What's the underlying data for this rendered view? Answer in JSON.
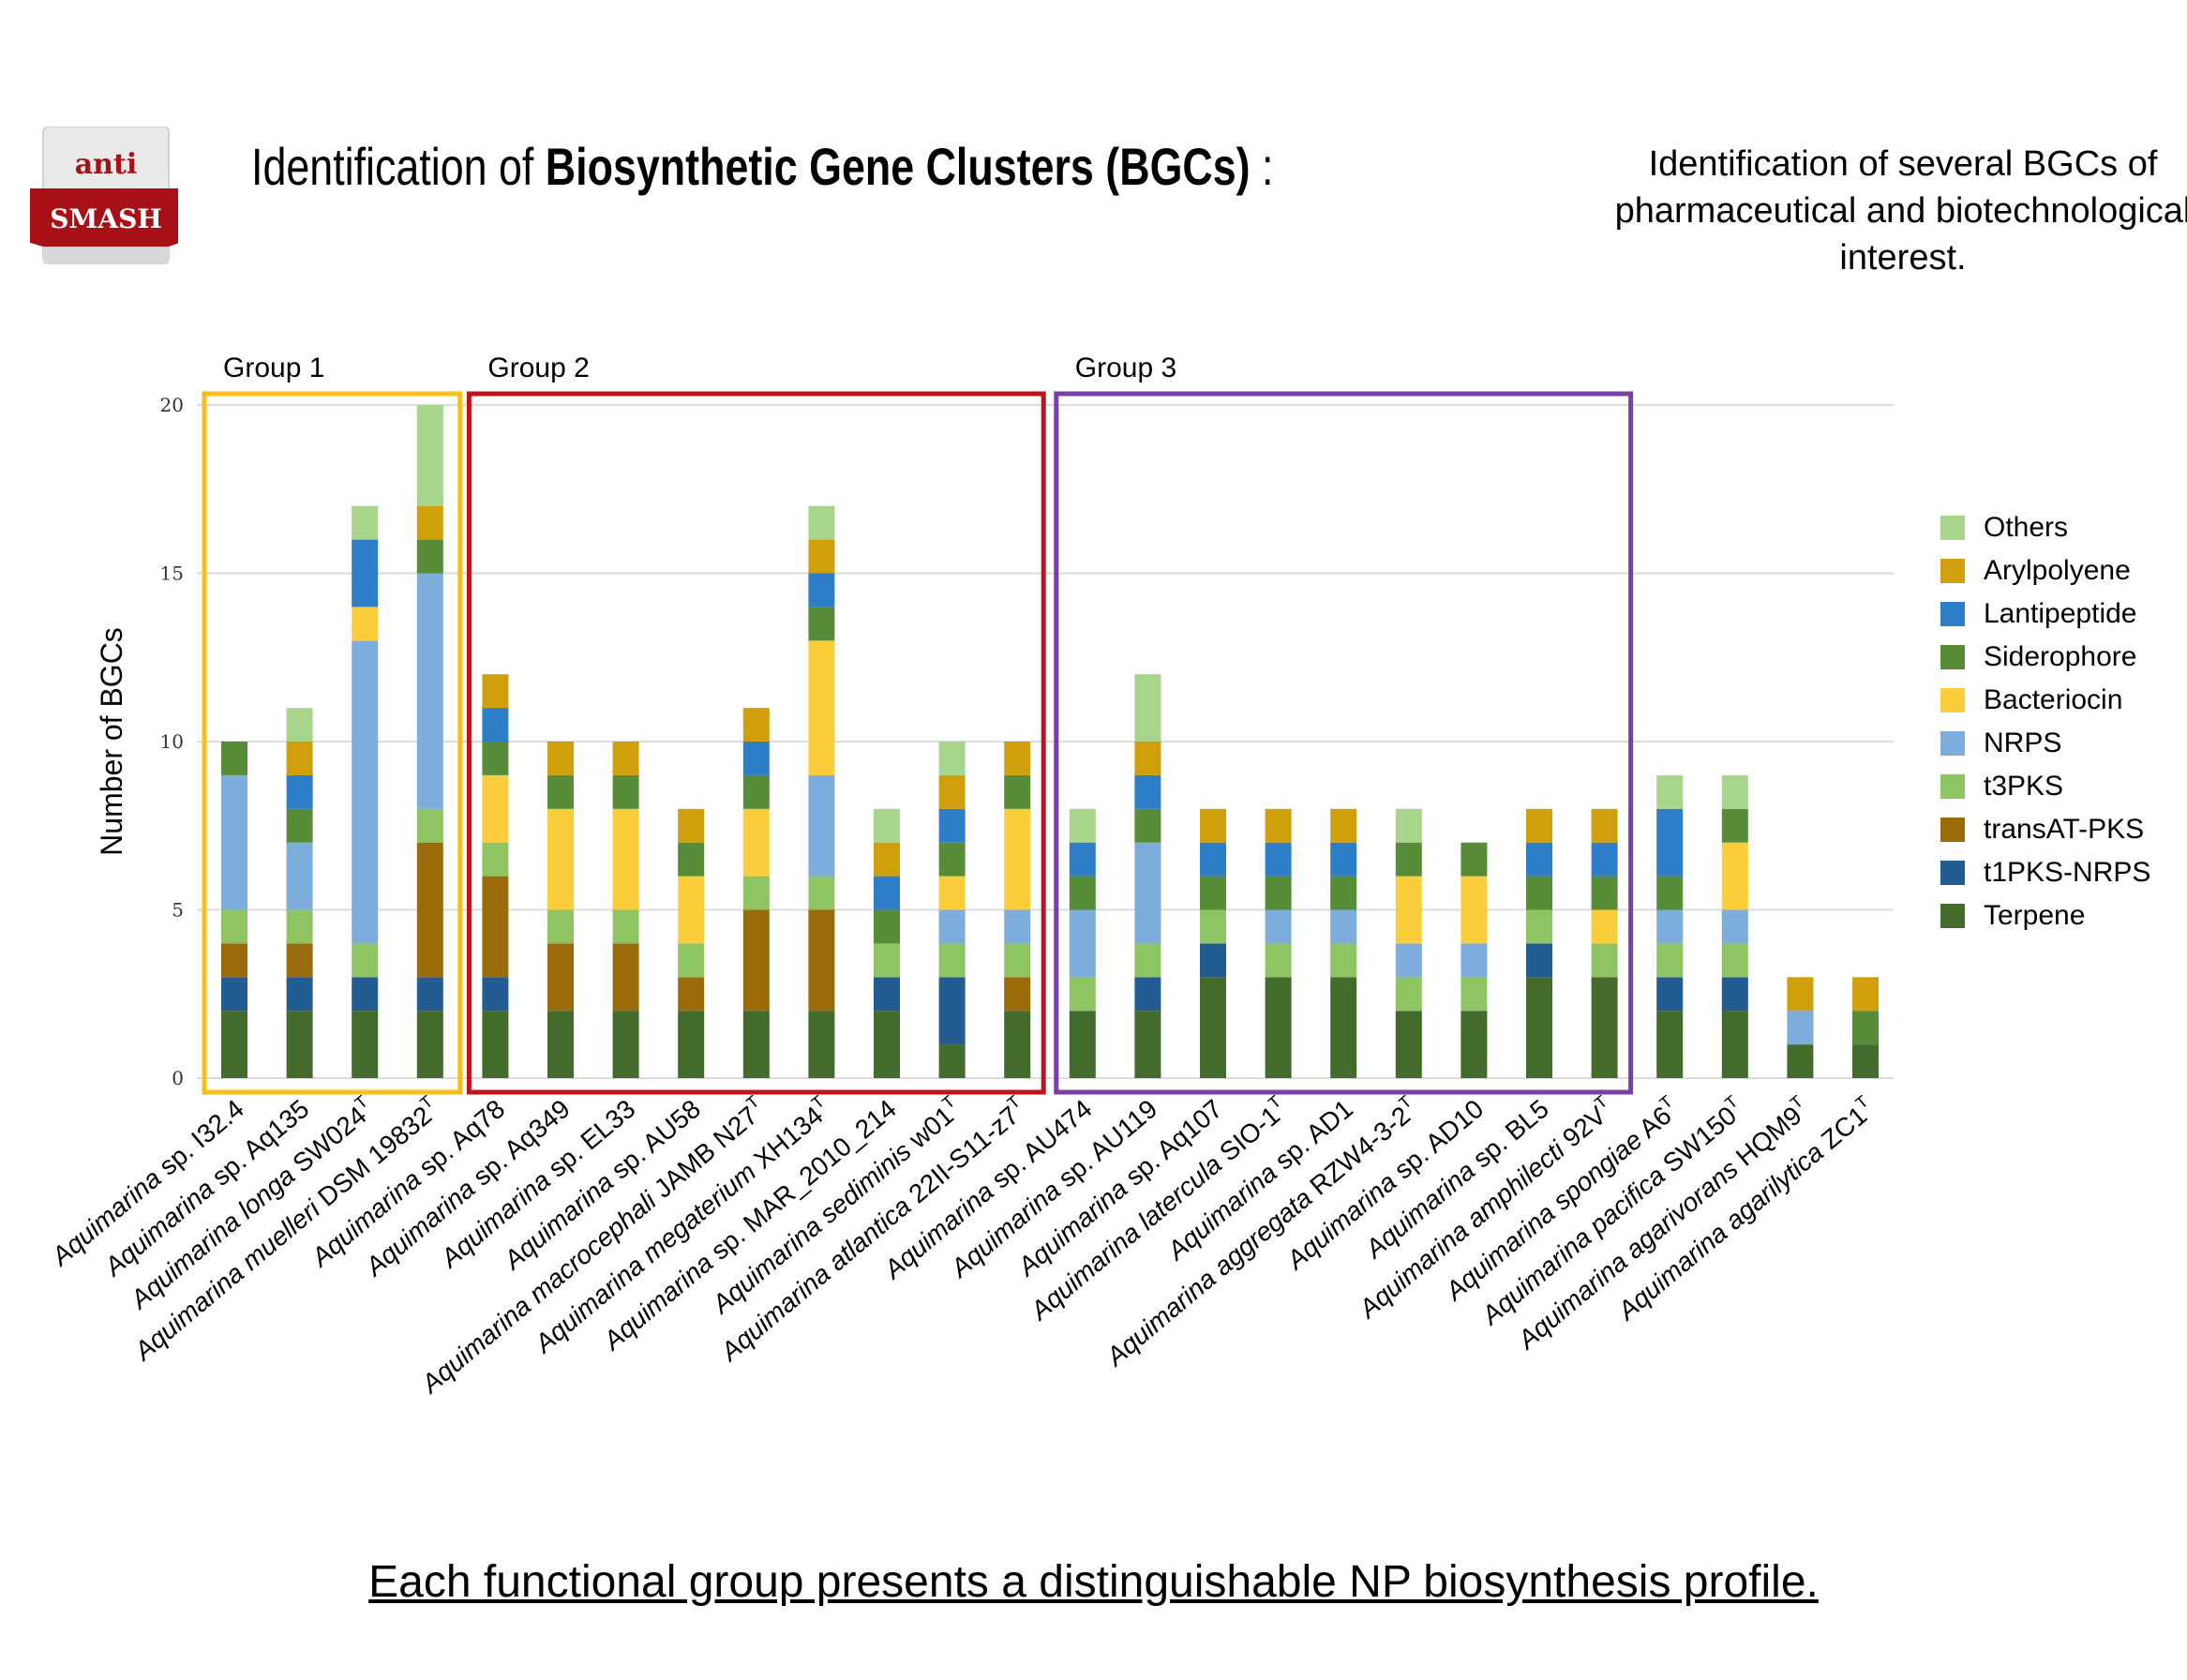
{
  "header": {
    "logo_top": "anti",
    "logo_bottom": "SMASH",
    "title_plain": "Identification of ",
    "title_bold": "Biosynthetic Gene Clusters (BGCs)",
    "title_suffix": " :",
    "note": "Identification of several BGCs of pharmaceutical and biotechnological interest."
  },
  "footer": {
    "text": "Each functional group presents a distinguishable NP biosynthesis profile."
  },
  "colors": {
    "group1": "#f6bf1a",
    "group2": "#c0111c",
    "group3": "#7a3fa3",
    "logo_red": "#a81016"
  },
  "chart_data": {
    "type": "bar",
    "stacked": true,
    "ylabel": "Number of BGCs",
    "xlabel": "",
    "ylim": [
      0,
      20
    ],
    "yticks": [
      0,
      5,
      10,
      15,
      20
    ],
    "grid": true,
    "legend_position": "right",
    "groups": [
      {
        "label": "Group 1",
        "start": 0,
        "end": 3,
        "color": "#f6bf1a"
      },
      {
        "label": "Group 2",
        "start": 4,
        "end": 12,
        "color": "#c0111c"
      },
      {
        "label": "Group 3",
        "start": 13,
        "end": 21,
        "color": "#7a3fa3"
      }
    ],
    "categories": [
      {
        "name": "Aquimarina sp. I32.4",
        "sup": ""
      },
      {
        "name": "Aquimarina sp. Aq135",
        "sup": ""
      },
      {
        "name": "Aquimarina longa SW024",
        "sup": "T"
      },
      {
        "name": "Aquimarina muelleri DSM 19832",
        "sup": "T"
      },
      {
        "name": "Aquimarina sp. Aq78",
        "sup": ""
      },
      {
        "name": "Aquimarina sp. Aq349",
        "sup": ""
      },
      {
        "name": "Aquimarina sp. EL33",
        "sup": ""
      },
      {
        "name": "Aquimarina sp. AU58",
        "sup": ""
      },
      {
        "name": "Aquimarina macrocephali JAMB N27",
        "sup": "T"
      },
      {
        "name": "Aquimarina megaterium XH134",
        "sup": "T"
      },
      {
        "name": "Aquimarina sp. MAR_2010_214",
        "sup": ""
      },
      {
        "name": "Aquimarina sediminis w01",
        "sup": "T"
      },
      {
        "name": "Aquimarina atlantica 22II-S11-z7",
        "sup": "T"
      },
      {
        "name": "Aquimarina sp. AU474",
        "sup": ""
      },
      {
        "name": "Aquimarina sp. AU119",
        "sup": ""
      },
      {
        "name": "Aquimarina sp. Aq107",
        "sup": ""
      },
      {
        "name": "Aquimarina latercula SIO-1",
        "sup": "T"
      },
      {
        "name": "Aquimarina sp. AD1",
        "sup": ""
      },
      {
        "name": "Aquimarina aggregata RZW4-3-2",
        "sup": "T"
      },
      {
        "name": "Aquimarina sp. AD10",
        "sup": ""
      },
      {
        "name": "Aquimarina sp. BL5",
        "sup": ""
      },
      {
        "name": "Aquimarina amphilecti 92V",
        "sup": "T"
      },
      {
        "name": "Aquimarina spongiae A6",
        "sup": "T"
      },
      {
        "name": "Aquimarina pacifica SW150",
        "sup": "T"
      },
      {
        "name": "Aquimarina agarivorans HQM9",
        "sup": "T"
      },
      {
        "name": "Aquimarina agarilytica ZC1",
        "sup": "T"
      }
    ],
    "series": [
      {
        "name": "Terpene",
        "color": "#426b2c",
        "values": [
          2,
          2,
          2,
          2,
          2,
          2,
          2,
          2,
          2,
          2,
          2,
          1,
          2,
          2,
          2,
          3,
          3,
          3,
          2,
          2,
          3,
          3,
          2,
          2,
          1,
          1
        ]
      },
      {
        "name": "t1PKS-NRPS",
        "color": "#235c93",
        "values": [
          1,
          1,
          1,
          1,
          1,
          0,
          0,
          0,
          0,
          0,
          1,
          2,
          0,
          0,
          1,
          1,
          0,
          0,
          0,
          0,
          1,
          0,
          1,
          1,
          0,
          0
        ]
      },
      {
        "name": "transAT-PKS",
        "color": "#9b6b09",
        "values": [
          1,
          1,
          0,
          4,
          3,
          2,
          2,
          1,
          3,
          3,
          0,
          0,
          1,
          0,
          0,
          0,
          0,
          0,
          0,
          0,
          0,
          0,
          0,
          0,
          0,
          0
        ]
      },
      {
        "name": "t3PKS",
        "color": "#8ec562",
        "values": [
          1,
          1,
          1,
          1,
          1,
          1,
          1,
          1,
          1,
          1,
          1,
          1,
          1,
          1,
          1,
          1,
          1,
          1,
          1,
          1,
          1,
          1,
          1,
          1,
          0,
          0
        ]
      },
      {
        "name": "NRPS",
        "color": "#7caddc",
        "values": [
          4,
          2,
          9,
          7,
          0,
          0,
          0,
          0,
          0,
          3,
          0,
          1,
          1,
          2,
          3,
          0,
          1,
          1,
          1,
          1,
          0,
          0,
          1,
          1,
          1,
          0
        ]
      },
      {
        "name": "Bacteriocin",
        "color": "#fbcd3a",
        "values": [
          0,
          0,
          1,
          0,
          2,
          3,
          3,
          2,
          2,
          4,
          0,
          1,
          3,
          0,
          0,
          0,
          0,
          0,
          2,
          2,
          0,
          1,
          0,
          2,
          0,
          0
        ]
      },
      {
        "name": "Siderophore",
        "color": "#578c38",
        "values": [
          1,
          1,
          0,
          1,
          1,
          1,
          1,
          1,
          1,
          1,
          1,
          1,
          1,
          1,
          1,
          1,
          1,
          1,
          1,
          1,
          1,
          1,
          1,
          1,
          0,
          1
        ]
      },
      {
        "name": "Lantipeptide",
        "color": "#2e7ec7",
        "values": [
          0,
          1,
          2,
          0,
          1,
          0,
          0,
          0,
          1,
          1,
          1,
          1,
          0,
          1,
          1,
          1,
          1,
          1,
          0,
          0,
          1,
          1,
          2,
          0,
          0,
          0
        ]
      },
      {
        "name": "Arylpolyene",
        "color": "#d19f0c",
        "values": [
          0,
          1,
          0,
          1,
          1,
          1,
          1,
          1,
          1,
          1,
          1,
          1,
          1,
          0,
          1,
          1,
          1,
          1,
          0,
          0,
          1,
          1,
          0,
          0,
          1,
          1
        ]
      },
      {
        "name": "Others",
        "color": "#a7d58b",
        "values": [
          0,
          1,
          1,
          3,
          0,
          0,
          0,
          0,
          0,
          1,
          1,
          1,
          0,
          1,
          2,
          0,
          0,
          0,
          1,
          0,
          0,
          0,
          1,
          1,
          0,
          0
        ]
      }
    ],
    "legend_order": [
      "Others",
      "Arylpolyene",
      "Lantipeptide",
      "Siderophore",
      "Bacteriocin",
      "NRPS",
      "t3PKS",
      "transAT-PKS",
      "t1PKS-NRPS",
      "Terpene"
    ]
  }
}
